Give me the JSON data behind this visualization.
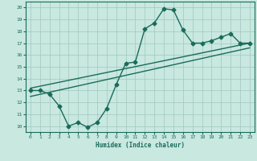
{
  "xlabel": "Humidex (Indice chaleur)",
  "bg_color": "#c8e8e0",
  "line_color": "#1a6b5a",
  "xlim": [
    -0.5,
    23.5
  ],
  "ylim": [
    9.5,
    20.5
  ],
  "xticks": [
    0,
    1,
    2,
    3,
    4,
    5,
    6,
    7,
    8,
    9,
    10,
    11,
    12,
    13,
    14,
    15,
    16,
    17,
    18,
    19,
    20,
    21,
    22,
    23
  ],
  "yticks": [
    10,
    11,
    12,
    13,
    14,
    15,
    16,
    17,
    18,
    19,
    20
  ],
  "data_line": {
    "x": [
      0,
      1,
      2,
      3,
      4,
      5,
      6,
      7,
      8,
      9,
      10,
      11,
      12,
      13,
      14,
      15,
      16,
      17,
      18,
      19,
      20,
      21,
      22,
      23
    ],
    "y": [
      13.0,
      13.0,
      12.7,
      11.7,
      10.0,
      10.3,
      9.9,
      10.3,
      11.5,
      13.5,
      15.3,
      15.4,
      18.2,
      18.7,
      19.9,
      19.8,
      18.1,
      17.0,
      17.0,
      17.2,
      17.5,
      17.8,
      17.0,
      17.0
    ]
  },
  "trend_line1": {
    "x": [
      0,
      23
    ],
    "y": [
      13.2,
      17.0
    ]
  },
  "trend_line2": {
    "x": [
      0,
      23
    ],
    "y": [
      12.5,
      16.6
    ]
  },
  "grid_color": "#a0c8c0",
  "marker": "D",
  "marker_size": 2.5,
  "linewidth": 1.0
}
